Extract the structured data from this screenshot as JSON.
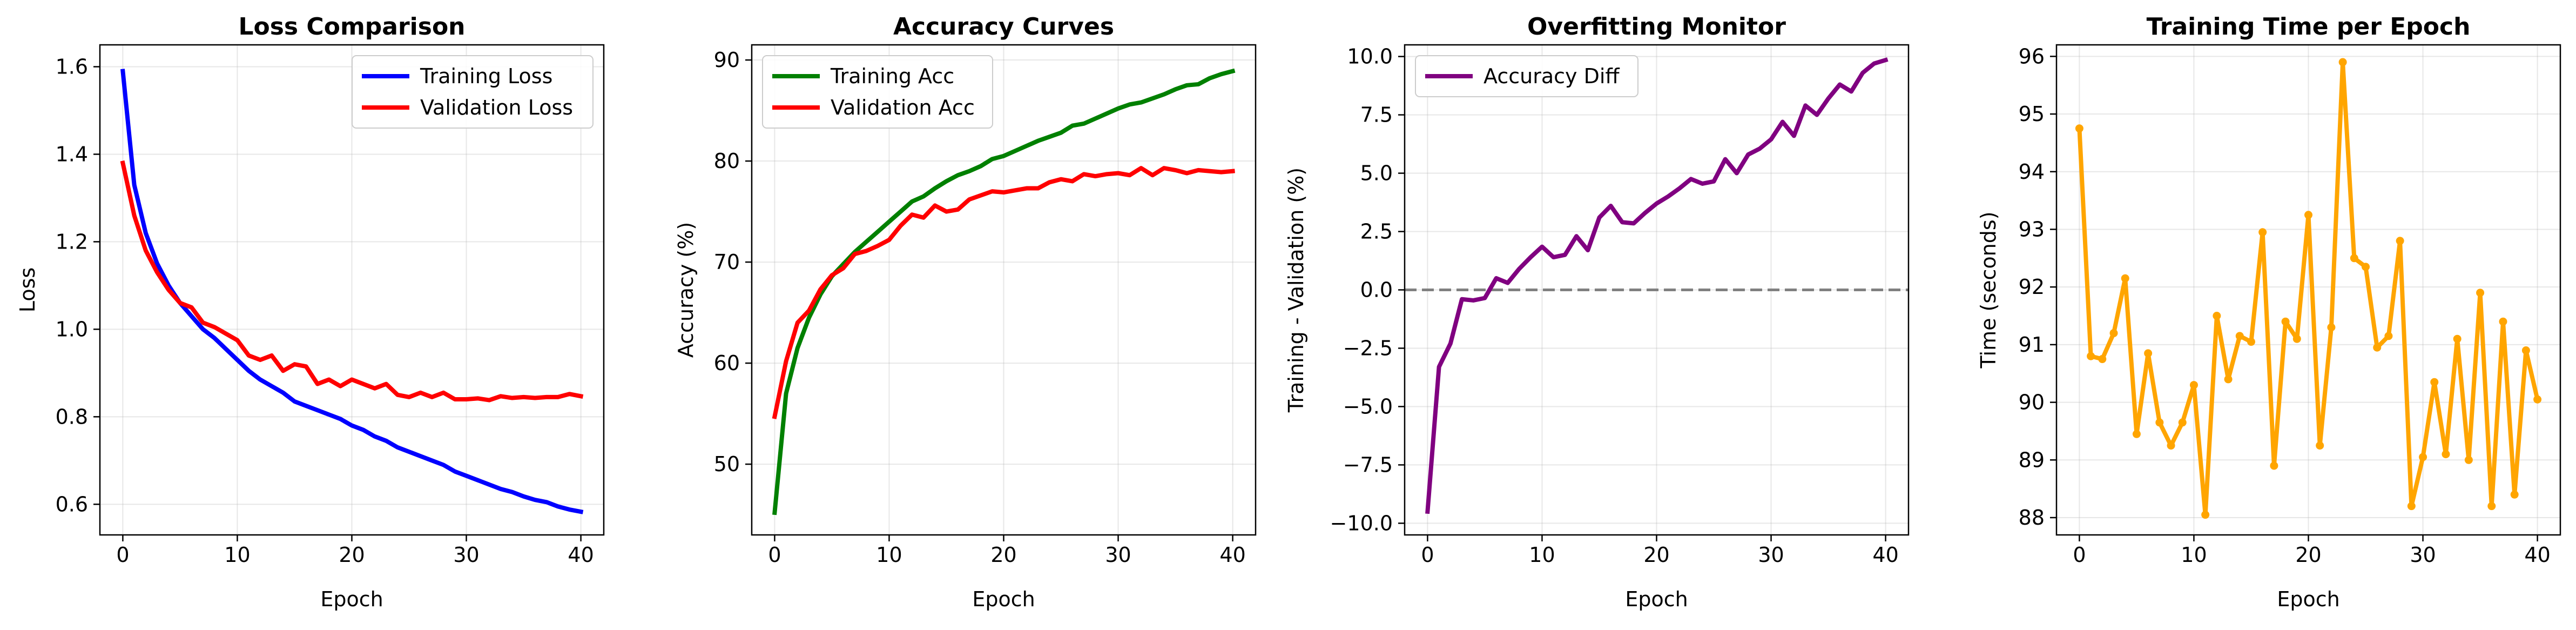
{
  "chart_data": [
    {
      "type": "line",
      "title": "Loss Comparison",
      "xlabel": "Epoch",
      "ylabel": "Loss",
      "xlim": [
        -2,
        42
      ],
      "ylim": [
        0.53,
        1.65
      ],
      "xticks": [
        0,
        10,
        20,
        30,
        40
      ],
      "yticks": [
        0.6,
        0.8,
        1.0,
        1.2,
        1.4,
        1.6
      ],
      "tick_decimals": 1,
      "grid": true,
      "legend": "top-right",
      "x": [
        0,
        1,
        2,
        3,
        4,
        5,
        6,
        7,
        8,
        9,
        10,
        11,
        12,
        13,
        14,
        15,
        16,
        17,
        18,
        19,
        20,
        21,
        22,
        23,
        24,
        25,
        26,
        27,
        28,
        29,
        30,
        31,
        32,
        33,
        34,
        35,
        36,
        37,
        38,
        39,
        40
      ],
      "series": [
        {
          "name": "Training Loss",
          "color": "#0000ff",
          "values": [
            1.59,
            1.33,
            1.22,
            1.15,
            1.1,
            1.06,
            1.03,
            1.0,
            0.98,
            0.955,
            0.93,
            0.905,
            0.885,
            0.87,
            0.855,
            0.835,
            0.825,
            0.815,
            0.805,
            0.795,
            0.78,
            0.77,
            0.755,
            0.745,
            0.73,
            0.72,
            0.71,
            0.7,
            0.69,
            0.675,
            0.665,
            0.655,
            0.645,
            0.635,
            0.628,
            0.618,
            0.61,
            0.605,
            0.595,
            0.588,
            0.583
          ]
        },
        {
          "name": "Validation Loss",
          "color": "#ff0000",
          "values": [
            1.38,
            1.26,
            1.18,
            1.13,
            1.09,
            1.06,
            1.05,
            1.015,
            1.005,
            0.99,
            0.975,
            0.94,
            0.93,
            0.94,
            0.905,
            0.92,
            0.915,
            0.875,
            0.885,
            0.87,
            0.885,
            0.875,
            0.865,
            0.875,
            0.85,
            0.845,
            0.855,
            0.845,
            0.855,
            0.84,
            0.84,
            0.842,
            0.838,
            0.847,
            0.843,
            0.845,
            0.843,
            0.845,
            0.845,
            0.852,
            0.847
          ]
        }
      ]
    },
    {
      "type": "line",
      "title": "Accuracy Curves",
      "xlabel": "Epoch",
      "ylabel": "Accuracy (%)",
      "xlim": [
        -2,
        42
      ],
      "ylim": [
        43,
        91.5
      ],
      "xticks": [
        0,
        10,
        20,
        30,
        40
      ],
      "yticks": [
        50,
        60,
        70,
        80,
        90
      ],
      "tick_decimals": 0,
      "grid": true,
      "legend": "top-left",
      "x": [
        0,
        1,
        2,
        3,
        4,
        5,
        6,
        7,
        8,
        9,
        10,
        11,
        12,
        13,
        14,
        15,
        16,
        17,
        18,
        19,
        20,
        21,
        22,
        23,
        24,
        25,
        26,
        27,
        28,
        29,
        30,
        31,
        32,
        33,
        34,
        35,
        36,
        37,
        38,
        39,
        40
      ],
      "series": [
        {
          "name": "Training Acc",
          "color": "#008000",
          "values": [
            45.2,
            57.0,
            61.5,
            64.5,
            66.8,
            68.6,
            69.8,
            71.0,
            72.0,
            73.0,
            74.0,
            75.0,
            76.0,
            76.5,
            77.3,
            78.0,
            78.6,
            79.0,
            79.5,
            80.2,
            80.5,
            81.0,
            81.5,
            82.0,
            82.4,
            82.8,
            83.5,
            83.7,
            84.2,
            84.7,
            85.2,
            85.6,
            85.8,
            86.2,
            86.6,
            87.1,
            87.5,
            87.6,
            88.2,
            88.6,
            88.9
          ]
        },
        {
          "name": "Validation Acc",
          "color": "#ff0000",
          "values": [
            54.7,
            60.2,
            64.0,
            65.2,
            67.3,
            68.7,
            69.4,
            70.8,
            71.1,
            71.6,
            72.2,
            73.6,
            74.7,
            74.4,
            75.6,
            75.0,
            75.2,
            76.2,
            76.6,
            77.0,
            76.9,
            77.1,
            77.3,
            77.3,
            77.9,
            78.2,
            78.0,
            78.7,
            78.5,
            78.7,
            78.8,
            78.6,
            79.3,
            78.6,
            79.3,
            79.1,
            78.8,
            79.1,
            79.0,
            78.9,
            79.0
          ]
        }
      ]
    },
    {
      "type": "line",
      "title": "Overfitting Monitor",
      "xlabel": "Epoch",
      "ylabel": "Training - Validation (%)",
      "xlim": [
        -2,
        42
      ],
      "ylim": [
        -10.5,
        10.5
      ],
      "xticks": [
        0,
        10,
        20,
        30,
        40
      ],
      "yticks": [
        -10.0,
        -7.5,
        -5.0,
        -2.5,
        0.0,
        2.5,
        5.0,
        7.5,
        10.0
      ],
      "tick_decimals": 1,
      "grid": true,
      "legend": "top-left",
      "reference_line": {
        "y": 0,
        "color": "#808080",
        "style": "dashed"
      },
      "x": [
        0,
        1,
        2,
        3,
        4,
        5,
        6,
        7,
        8,
        9,
        10,
        11,
        12,
        13,
        14,
        15,
        16,
        17,
        18,
        19,
        20,
        21,
        22,
        23,
        24,
        25,
        26,
        27,
        28,
        29,
        30,
        31,
        32,
        33,
        34,
        35,
        36,
        37,
        38,
        39,
        40
      ],
      "series": [
        {
          "name": "Accuracy Diff",
          "color": "#800080",
          "values": [
            -9.5,
            -3.3,
            -2.3,
            -0.4,
            -0.45,
            -0.35,
            0.5,
            0.3,
            0.9,
            1.4,
            1.85,
            1.4,
            1.5,
            2.3,
            1.7,
            3.1,
            3.6,
            2.9,
            2.85,
            3.3,
            3.7,
            4.0,
            4.35,
            4.75,
            4.55,
            4.65,
            5.6,
            5.0,
            5.8,
            6.05,
            6.45,
            7.2,
            6.6,
            7.9,
            7.5,
            8.2,
            8.8,
            8.5,
            9.3,
            9.7,
            9.85
          ]
        }
      ]
    },
    {
      "type": "line",
      "title": "Training Time per Epoch",
      "xlabel": "Epoch",
      "ylabel": "Time (seconds)",
      "xlim": [
        -2,
        42
      ],
      "ylim": [
        87.7,
        96.2
      ],
      "xticks": [
        0,
        10,
        20,
        30,
        40
      ],
      "yticks": [
        88,
        89,
        90,
        91,
        92,
        93,
        94,
        95,
        96
      ],
      "tick_decimals": 0,
      "grid": true,
      "markers": true,
      "x": [
        0,
        1,
        2,
        3,
        4,
        5,
        6,
        7,
        8,
        9,
        10,
        11,
        12,
        13,
        14,
        15,
        16,
        17,
        18,
        19,
        20,
        21,
        22,
        23,
        24,
        25,
        26,
        27,
        28,
        29,
        30,
        31,
        32,
        33,
        34,
        35,
        36,
        37,
        38,
        39,
        40
      ],
      "series": [
        {
          "color": "#ffa500",
          "values": [
            94.75,
            90.8,
            90.75,
            91.2,
            92.15,
            89.45,
            90.85,
            89.65,
            89.25,
            89.65,
            90.3,
            88.05,
            91.5,
            90.4,
            91.15,
            91.05,
            92.95,
            88.9,
            91.4,
            91.1,
            93.25,
            89.25,
            91.3,
            95.9,
            92.5,
            92.35,
            90.95,
            91.15,
            92.8,
            88.2,
            89.05,
            90.35,
            89.1,
            91.1,
            89.0,
            91.9,
            88.2,
            91.4,
            88.4,
            90.9,
            90.05
          ]
        }
      ]
    }
  ]
}
